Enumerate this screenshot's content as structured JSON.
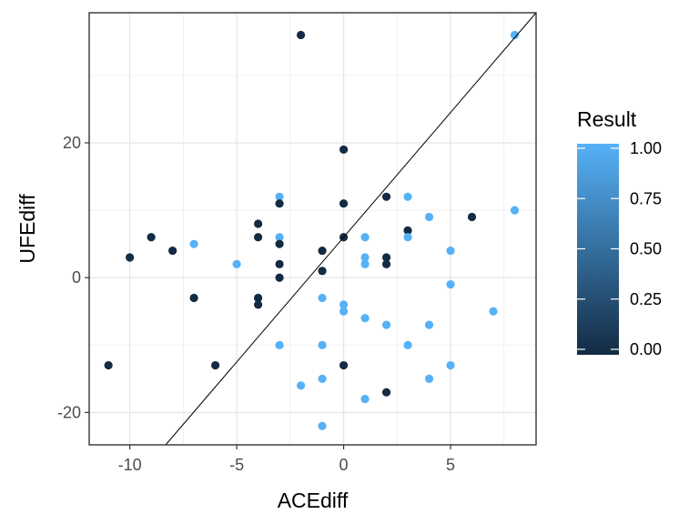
{
  "chart_data": {
    "type": "scatter",
    "xlabel": "ACEdiff",
    "ylabel": "UFEdiff",
    "xlim": [
      -11.9,
      9.0
    ],
    "ylim": [
      -24.8,
      39.3
    ],
    "x_ticks": [
      -10,
      -5,
      0,
      5
    ],
    "y_ticks": [
      -20,
      0,
      20
    ],
    "grid": true,
    "legend": {
      "title": "Result",
      "position": "right",
      "type": "colorbar",
      "ticks": [
        "0.00",
        "0.25",
        "0.50",
        "0.75",
        "1.00"
      ],
      "tick_values": [
        0,
        0.25,
        0.5,
        0.75,
        1.0
      ],
      "color_low": "#132B43",
      "color_high": "#56B1F7"
    },
    "reference_line": {
      "intercept": 6,
      "slope": 3.7
    },
    "points": [
      {
        "x": -2,
        "y": 36,
        "result": 0
      },
      {
        "x": 8,
        "y": 36,
        "result": 1
      },
      {
        "x": 0,
        "y": 19,
        "result": 0
      },
      {
        "x": -3,
        "y": 12,
        "result": 1
      },
      {
        "x": -3,
        "y": 11,
        "result": 0
      },
      {
        "x": 0,
        "y": 11,
        "result": 0
      },
      {
        "x": 2,
        "y": 12,
        "result": 0
      },
      {
        "x": 3,
        "y": 12,
        "result": 1
      },
      {
        "x": 8,
        "y": 10,
        "result": 1
      },
      {
        "x": 4,
        "y": 9,
        "result": 1
      },
      {
        "x": 6,
        "y": 9,
        "result": 0
      },
      {
        "x": -4,
        "y": 8,
        "result": 0
      },
      {
        "x": 3,
        "y": 7,
        "result": 0
      },
      {
        "x": -9,
        "y": 6,
        "result": 0
      },
      {
        "x": -4,
        "y": 6,
        "result": 0
      },
      {
        "x": -3,
        "y": 6,
        "result": 1
      },
      {
        "x": 0,
        "y": 6,
        "result": 0
      },
      {
        "x": 1,
        "y": 6,
        "result": 1
      },
      {
        "x": 3,
        "y": 6,
        "result": 1
      },
      {
        "x": -7,
        "y": 5,
        "result": 1
      },
      {
        "x": -3,
        "y": 5,
        "result": 0
      },
      {
        "x": -8,
        "y": 4,
        "result": 0
      },
      {
        "x": -1,
        "y": 4,
        "result": 0
      },
      {
        "x": 5,
        "y": 4,
        "result": 1
      },
      {
        "x": -10,
        "y": 3,
        "result": 0
      },
      {
        "x": 1,
        "y": 3,
        "result": 1
      },
      {
        "x": 2,
        "y": 3,
        "result": 0
      },
      {
        "x": -5,
        "y": 2,
        "result": 1
      },
      {
        "x": -3,
        "y": 2,
        "result": 0
      },
      {
        "x": 1,
        "y": 2,
        "result": 1
      },
      {
        "x": 2,
        "y": 2,
        "result": 0
      },
      {
        "x": -1,
        "y": 1,
        "result": 0
      },
      {
        "x": -3,
        "y": 0,
        "result": 0
      },
      {
        "x": 5,
        "y": -1,
        "result": 1
      },
      {
        "x": -7,
        "y": -3,
        "result": 0
      },
      {
        "x": -4,
        "y": -3,
        "result": 0
      },
      {
        "x": -1,
        "y": -3,
        "result": 1
      },
      {
        "x": -4,
        "y": -4,
        "result": 0
      },
      {
        "x": 0,
        "y": -4,
        "result": 1
      },
      {
        "x": 0,
        "y": -5,
        "result": 1
      },
      {
        "x": 7,
        "y": -5,
        "result": 1
      },
      {
        "x": 1,
        "y": -6,
        "result": 1
      },
      {
        "x": 2,
        "y": -7,
        "result": 1
      },
      {
        "x": 4,
        "y": -7,
        "result": 1
      },
      {
        "x": -3,
        "y": -10,
        "result": 1
      },
      {
        "x": -1,
        "y": -10,
        "result": 1
      },
      {
        "x": 3,
        "y": -10,
        "result": 1
      },
      {
        "x": -11,
        "y": -13,
        "result": 0
      },
      {
        "x": -6,
        "y": -13,
        "result": 0
      },
      {
        "x": 0,
        "y": -13,
        "result": 0
      },
      {
        "x": 5,
        "y": -13,
        "result": 1
      },
      {
        "x": -1,
        "y": -15,
        "result": 1
      },
      {
        "x": 4,
        "y": -15,
        "result": 1
      },
      {
        "x": -2,
        "y": -16,
        "result": 1
      },
      {
        "x": 2,
        "y": -17,
        "result": 0
      },
      {
        "x": 1,
        "y": -18,
        "result": 1
      },
      {
        "x": -1,
        "y": -22,
        "result": 1
      }
    ]
  }
}
